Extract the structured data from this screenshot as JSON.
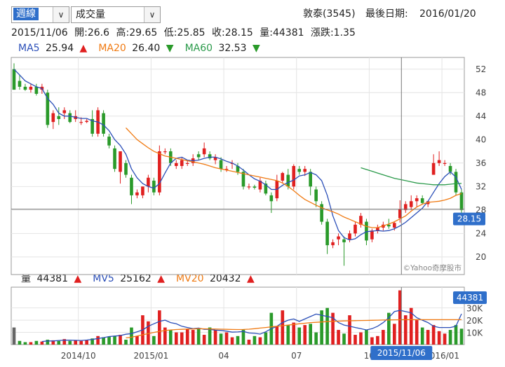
{
  "controls": {
    "period_select": "週線",
    "indicator_select": "成交量"
  },
  "header": {
    "stock": "敦泰(3545)",
    "last_date_label": "最後日期:",
    "last_date": "2016/01/20"
  },
  "ohlc": {
    "date": "2015/11/06",
    "open": "開:26.6",
    "high": "高:29.65",
    "low": "低:25.85",
    "close": "收:28.15",
    "volume": "量:44381",
    "change": "漲跌:1.35"
  },
  "ma_legend": [
    {
      "label": "MA5",
      "value": "25.94",
      "arrow": "▲",
      "color": "#2b4fb8",
      "arrow_color": "#e02020"
    },
    {
      "label": "MA20",
      "value": "26.40",
      "arrow": "▼",
      "color": "#f07a12",
      "arrow_color": "#2a9a2a"
    },
    {
      "label": "MA60",
      "value": "32.53",
      "arrow": "▼",
      "color": "#2a9a4a",
      "arrow_color": "#2a9a2a"
    }
  ],
  "vol_legend": [
    {
      "label": "量",
      "value": "44381",
      "arrow": "▲",
      "color": "#222",
      "arrow_color": "#e02020"
    },
    {
      "label": "MV5",
      "value": "25162",
      "arrow": "▲",
      "color": "#2b4fb8",
      "arrow_color": "#e02020"
    },
    {
      "label": "MV20",
      "value": "20432",
      "arrow": "▲",
      "color": "#f07a12",
      "arrow_color": "#e02020"
    }
  ],
  "watermark": "©Yahoo奇摩股市",
  "price_badge": "28.15",
  "volume_badge": "44381",
  "cursor_date": "2015/11/06",
  "colors": {
    "up": "#e02020",
    "down": "#2a9a2a",
    "ma5": "#2b4fb8",
    "ma20": "#f07a12",
    "ma60": "#2a9a4a",
    "badge": "#2f6fca"
  },
  "chart_data": [
    {
      "type": "candlestick",
      "title": "敦泰(3545) 週線",
      "ylim": [
        17,
        54
      ],
      "yticks": [
        20,
        24,
        28,
        32,
        36,
        40,
        44,
        48,
        52
      ],
      "xticks": [
        "2014/10",
        "2015/01",
        "04",
        "07",
        "10",
        "2016/01"
      ],
      "xtick_index": [
        12,
        25,
        38,
        51,
        64,
        77
      ],
      "grid": true,
      "candles": [
        [
          52,
          53,
          48.5,
          48.5
        ],
        [
          50,
          51,
          48.5,
          49
        ],
        [
          49,
          49.5,
          48.3,
          48.5
        ],
        [
          48.5,
          49.5,
          48,
          49
        ],
        [
          49,
          49.5,
          47.5,
          47.8
        ],
        [
          48.5,
          49.5,
          47.8,
          49
        ],
        [
          48,
          48.5,
          42,
          42.5
        ],
        [
          43,
          45,
          41.8,
          44.5
        ],
        [
          44,
          45.5,
          42.5,
          43.5
        ],
        [
          44.5,
          45.5,
          43.5,
          45
        ],
        [
          44.5,
          45,
          42.8,
          43
        ],
        [
          43.5,
          45,
          43,
          44
        ],
        [
          43,
          43.8,
          42.5,
          43
        ],
        [
          43,
          43.5,
          42.8,
          43.2
        ],
        [
          43.5,
          45,
          40.5,
          41
        ],
        [
          41,
          45.5,
          40.5,
          45
        ],
        [
          44.5,
          45,
          40.5,
          41
        ],
        [
          40.5,
          41,
          38.5,
          39
        ],
        [
          38.5,
          39,
          34.5,
          35
        ],
        [
          34.5,
          38,
          32.5,
          38
        ],
        [
          36,
          36.5,
          33.5,
          34
        ],
        [
          33.5,
          34,
          29,
          30.5
        ],
        [
          30.5,
          31.5,
          30,
          31
        ],
        [
          30.5,
          32,
          30,
          32
        ],
        [
          32,
          34,
          31,
          33.5
        ],
        [
          33,
          33.5,
          30.5,
          31
        ],
        [
          31,
          39,
          30.5,
          38
        ],
        [
          38,
          38.5,
          37.5,
          38
        ],
        [
          38,
          38.5,
          35.5,
          36
        ],
        [
          35.5,
          36.5,
          35,
          36
        ],
        [
          35.5,
          37,
          35,
          36.5
        ],
        [
          36,
          36.5,
          35.5,
          36
        ],
        [
          36,
          37.5,
          35.5,
          36.8
        ],
        [
          37.5,
          38,
          36.5,
          37
        ],
        [
          37.5,
          39.5,
          37,
          38.5
        ],
        [
          37.5,
          38,
          36.5,
          36.8
        ],
        [
          36.5,
          37.5,
          35.8,
          37
        ],
        [
          36.5,
          37,
          34.5,
          35
        ],
        [
          35,
          35.5,
          34.5,
          35
        ],
        [
          36,
          36.5,
          35,
          36
        ],
        [
          35.5,
          36,
          34,
          34.5
        ],
        [
          34.5,
          35,
          31.5,
          32
        ],
        [
          32,
          32.5,
          31.5,
          32
        ],
        [
          32,
          32.3,
          31.5,
          31.8
        ],
        [
          31.5,
          33.5,
          31,
          33
        ],
        [
          32.5,
          33,
          30.5,
          30.8
        ],
        [
          30.5,
          31,
          27.5,
          29.5
        ],
        [
          30,
          34,
          29.5,
          33
        ],
        [
          33,
          34.5,
          32.5,
          34.3
        ],
        [
          34,
          35,
          31.5,
          32
        ],
        [
          32,
          35.8,
          31.5,
          35.5
        ],
        [
          35,
          35.5,
          34,
          34.5
        ],
        [
          34.5,
          35.5,
          33.8,
          35
        ],
        [
          34.5,
          35,
          30.5,
          32
        ],
        [
          31.5,
          32,
          28.5,
          29.5
        ],
        [
          29,
          29.5,
          25.5,
          26
        ],
        [
          26,
          26.5,
          20.5,
          22
        ],
        [
          22,
          23,
          21.5,
          22.5
        ],
        [
          23,
          24,
          22,
          23.5
        ],
        [
          23,
          23.5,
          18.5,
          22.5
        ],
        [
          23,
          24.5,
          22.5,
          24
        ],
        [
          24,
          26,
          23.5,
          25.5
        ],
        [
          25.5,
          27.5,
          25,
          27
        ],
        [
          26,
          26.5,
          22,
          22.8
        ],
        [
          23,
          24.8,
          22.5,
          24.5
        ],
        [
          24.5,
          25.5,
          24,
          25
        ],
        [
          25,
          26,
          24.5,
          25.5
        ],
        [
          25.5,
          26.5,
          24.8,
          25.2
        ],
        [
          25,
          26,
          24.5,
          25.8
        ],
        [
          26.6,
          29.65,
          25.85,
          28.15
        ],
        [
          28,
          29.5,
          27.5,
          29
        ],
        [
          28.5,
          30.5,
          28,
          29.5
        ],
        [
          29.5,
          30.5,
          28.5,
          30
        ],
        [
          30,
          30.5,
          29,
          29.2
        ],
        [
          29,
          29.5,
          28.5,
          29.5
        ],
        [
          34,
          37.5,
          34,
          36
        ],
        [
          36,
          38,
          35.5,
          36.5
        ],
        [
          36,
          36.5,
          35.5,
          36
        ],
        [
          35.5,
          36,
          34,
          34.5
        ],
        [
          34.5,
          35,
          30.5,
          31
        ],
        [
          31,
          31.5,
          27.5,
          28
        ]
      ],
      "ma5": [
        52,
        51,
        50,
        49.5,
        49,
        48.7,
        47,
        46,
        44.5,
        44,
        44,
        43.8,
        43.6,
        43.6,
        43.2,
        43,
        42.5,
        41.5,
        40,
        39,
        37.5,
        35,
        33.5,
        32.5,
        32,
        31.7,
        32.5,
        34.3,
        36,
        36.8,
        37,
        36.5,
        36.4,
        36.5,
        36.8,
        37,
        37,
        36.7,
        36.3,
        36,
        35.5,
        34.8,
        34,
        33.3,
        32.9,
        32.3,
        31.5,
        31.5,
        32.2,
        32.7,
        33.1,
        33.8,
        34,
        34.4,
        34,
        33,
        30.5,
        27,
        24.5,
        23.3,
        22.9,
        23.1,
        23.8,
        24.3,
        24.4,
        24.5,
        24.4,
        24.5,
        24.8,
        25.3,
        25.9,
        26.7,
        27.5,
        28.3,
        29.5,
        31,
        32.5,
        33.7,
        34.5,
        33.6,
        31.5
      ],
      "ma20_start": 20,
      "ma20": [
        42,
        41,
        40,
        39.3,
        38.6,
        38,
        37.6,
        37.2,
        37,
        36.8,
        36.6,
        36.4,
        36.2,
        36,
        35.8,
        35.5,
        35.2,
        35,
        34.8,
        34.6,
        34.4,
        34.2,
        34,
        33.8,
        33.6,
        33.4,
        33.2,
        33,
        32.6,
        32,
        31.3,
        30.5,
        29.8,
        29.3,
        28.8,
        28.4,
        28,
        27.7,
        27.3,
        26.8,
        26.4,
        26,
        25.6,
        25.2,
        25,
        25,
        25.3,
        25.6,
        26,
        26.5,
        27,
        27.8,
        28.5,
        29,
        29.3,
        29.4,
        29.5,
        29.7,
        30,
        30.5,
        30.8
      ],
      "ma60_start": 62,
      "ma60": [
        35.2,
        34.9,
        34.6,
        34.3,
        34,
        33.7,
        33.4,
        33.2,
        33,
        32.8,
        32.6,
        32.5,
        32.4,
        32.3,
        32.3,
        32.3,
        32.4,
        32.5,
        32.53
      ]
    },
    {
      "type": "bar",
      "title": "成交量",
      "ylim": [
        0,
        47000
      ],
      "yticks": [
        10000,
        20000,
        30000
      ],
      "ytick_labels": [
        "10K",
        "20K",
        "30K"
      ],
      "volumes": [
        14000,
        3000,
        2000,
        2000,
        3000,
        2500,
        4000,
        3500,
        3000,
        4500,
        3000,
        3500,
        3000,
        3500,
        5000,
        7000,
        6000,
        6500,
        7000,
        8000,
        4000,
        14000,
        7000,
        24000,
        19000,
        7000,
        28000,
        14000,
        12000,
        10000,
        10000,
        13000,
        12000,
        13000,
        8000,
        14000,
        12000,
        9000,
        10000,
        6000,
        7000,
        12000,
        4000,
        7000,
        6000,
        10000,
        26000,
        15000,
        28000,
        16000,
        18000,
        14000,
        16000,
        17000,
        10000,
        28000,
        30000,
        26000,
        12000,
        9000,
        24000,
        8000,
        10000,
        12000,
        6000,
        7000,
        12000,
        26000,
        17000,
        44381,
        24000,
        30000,
        20000,
        14000,
        12000,
        16000,
        11000,
        9000,
        12000,
        16000,
        13000
      ],
      "mv5": [
        null,
        null,
        null,
        null,
        null,
        2500,
        3000,
        3000,
        3400,
        3600,
        3600,
        3500,
        3400,
        3700,
        4200,
        5000,
        5700,
        6600,
        7000,
        7400,
        8500,
        9000,
        10500,
        12000,
        15000,
        17000,
        19000,
        20000,
        18000,
        17000,
        15000,
        14000,
        13000,
        13500,
        12500,
        12500,
        11800,
        11600,
        11000,
        10200,
        10400,
        10800,
        9500,
        9200,
        8600,
        10500,
        13000,
        15000,
        18000,
        20000,
        21000,
        19000,
        21000,
        23000,
        25000,
        24000,
        23000,
        22000,
        18000,
        16000,
        15000,
        14000,
        13000,
        12000,
        13000,
        15000,
        18000,
        22000,
        27000,
        28000,
        27000,
        26000,
        22000,
        20000,
        18000,
        15000,
        14000,
        14000,
        14000,
        15000,
        25162
      ],
      "mv20_start": 20,
      "mv20": [
        5500,
        6000,
        7000,
        8000,
        9000,
        10000,
        10800,
        11500,
        12000,
        12300,
        12500,
        12700,
        12800,
        13000,
        12900,
        12800,
        12700,
        12600,
        12500,
        12400,
        12300,
        12400,
        12600,
        13000,
        13500,
        14000,
        14500,
        15000,
        15500,
        16000,
        16500,
        17000,
        17500,
        18000,
        18200,
        18500,
        18800,
        19000,
        19200,
        19400,
        19500,
        19600,
        19700,
        19800,
        19900,
        20000,
        20100,
        20200,
        20300,
        20350,
        20380,
        20400,
        20410,
        20420,
        20425,
        20428,
        20430,
        20431,
        20431,
        20432,
        20432
      ]
    }
  ]
}
